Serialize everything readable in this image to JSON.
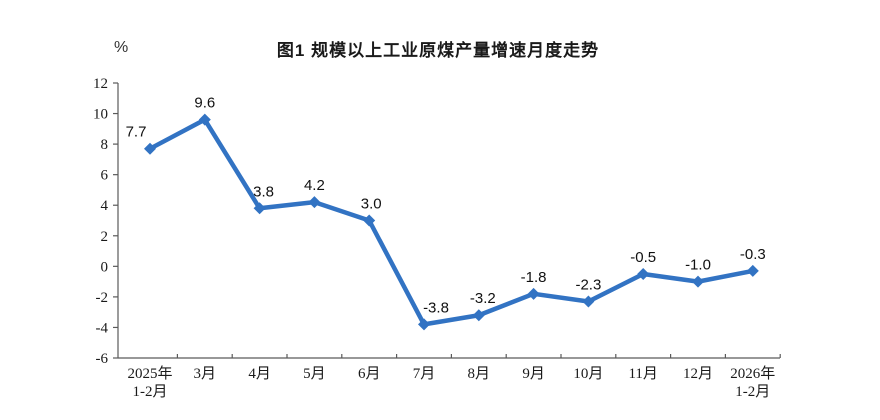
{
  "chart_data": {
    "type": "line",
    "title": "图1  规模以上工业原煤产量增速月度走势",
    "y_unit": "%",
    "categories": [
      [
        "2025年",
        "1-2月"
      ],
      [
        "3月"
      ],
      [
        "4月"
      ],
      [
        "5月"
      ],
      [
        "6月"
      ],
      [
        "7月"
      ],
      [
        "8月"
      ],
      [
        "9月"
      ],
      [
        "10月"
      ],
      [
        "11月"
      ],
      [
        "12月"
      ],
      [
        "2026年",
        "1-2月"
      ]
    ],
    "values": [
      7.7,
      9.6,
      3.8,
      4.2,
      3.0,
      -3.8,
      -3.2,
      -1.8,
      -2.3,
      -0.5,
      -1.0,
      -0.3
    ],
    "value_labels": [
      "7.7",
      "9.6",
      "3.8",
      "4.2",
      "3.0",
      "-3.8",
      "-3.2",
      "-1.8",
      "-2.3",
      "-0.5",
      "-1.0",
      "-0.3"
    ],
    "y_ticks": [
      12,
      10,
      8,
      6,
      4,
      2,
      0,
      -2,
      -4,
      -6
    ],
    "ylim": [
      -6,
      12
    ],
    "xlabel": "",
    "ylabel": "%",
    "grid": false,
    "legend": "none",
    "line_color": "#3273C3",
    "marker": "diamond",
    "axis_color": "#5a5a5a",
    "text_color": "#1a1a1a"
  }
}
